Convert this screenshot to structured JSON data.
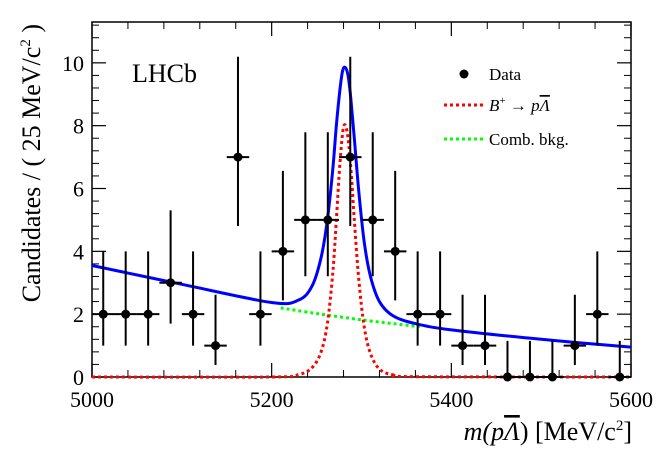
{
  "chart_data": {
    "type": "scatter",
    "title": "",
    "experiment_label": "LHCb",
    "xlabel_parts": [
      "m(p",
      "Λ",
      ") [MeV/c",
      "2",
      "]"
    ],
    "ylabel_parts": [
      "Candidates / ( 25 MeV/c",
      "2",
      " )"
    ],
    "xlim": [
      5000,
      5600
    ],
    "ylim": [
      0,
      11.3
    ],
    "x_ticks": [
      5000,
      5200,
      5400,
      5600
    ],
    "y_ticks": [
      0,
      2,
      4,
      6,
      8,
      10
    ],
    "x_tick_labels": [
      "5000",
      "5200",
      "5400",
      "5600"
    ],
    "y_tick_labels": [
      "0",
      "2",
      "4",
      "6",
      "8",
      "10"
    ],
    "legend": {
      "placement": "top-right",
      "entries": [
        {
          "name": "data",
          "label": "Data",
          "style": "marker"
        },
        {
          "name": "signal",
          "label_parts": [
            "B",
            "+",
            " → p",
            "Λ"
          ],
          "style": "dotted",
          "color": "#ff0000"
        },
        {
          "name": "comb",
          "label": "Comb. bkg.",
          "style": "dotted",
          "color": "#00ff00"
        }
      ]
    },
    "data_points": {
      "name": "Data",
      "x": [
        5012.5,
        5037.5,
        5062.5,
        5087.5,
        5112.5,
        5137.5,
        5162.5,
        5187.5,
        5212.5,
        5237.5,
        5262.5,
        5287.5,
        5312.5,
        5337.5,
        5362.5,
        5387.5,
        5412.5,
        5437.5,
        5462.5,
        5487.5,
        5512.5,
        5537.5,
        5562.5,
        5587.5
      ],
      "y": [
        2,
        2,
        2,
        3,
        2,
        1,
        7,
        2,
        4,
        5,
        5,
        7,
        5,
        4,
        2,
        2,
        1,
        1,
        0,
        0,
        0,
        1,
        2,
        0
      ],
      "x_half_width": 12.5
    },
    "series": [
      {
        "name": "Total fit",
        "color": "#0000ff",
        "style": "solid",
        "x": [
          5000,
          5100,
          5200,
          5230,
          5245,
          5255,
          5262,
          5268,
          5272,
          5276,
          5279,
          5282,
          5285,
          5288,
          5292,
          5297,
          5303,
          5310,
          5320,
          5335,
          5360,
          5400,
          5500,
          5600
        ],
        "y": [
          3.55,
          2.95,
          2.37,
          2.45,
          2.9,
          3.8,
          5.0,
          6.6,
          8.0,
          9.15,
          9.75,
          9.85,
          9.6,
          8.9,
          7.6,
          5.9,
          4.3,
          3.2,
          2.4,
          1.95,
          1.7,
          1.5,
          1.2,
          0.95
        ]
      },
      {
        "name": "Signal B+ → pΛ̄",
        "color": "#ff0000",
        "style": "dotted",
        "x": [
          5000,
          5200,
          5230,
          5245,
          5255,
          5262,
          5268,
          5272,
          5276,
          5280,
          5284,
          5288,
          5292,
          5297,
          5303,
          5310,
          5320,
          5335,
          5360,
          5600
        ],
        "y": [
          0,
          0,
          0.08,
          0.3,
          0.8,
          1.7,
          3.3,
          5.0,
          6.8,
          7.95,
          7.8,
          6.7,
          5.0,
          3.1,
          1.6,
          0.75,
          0.25,
          0.07,
          0.01,
          0
        ]
      },
      {
        "name": "Comb. bkg.",
        "color": "#00ff00",
        "style": "dotted",
        "x": [
          5210,
          5250,
          5300,
          5350,
          5365
        ],
        "y": [
          2.2,
          2.02,
          1.82,
          1.65,
          1.6
        ]
      }
    ]
  }
}
